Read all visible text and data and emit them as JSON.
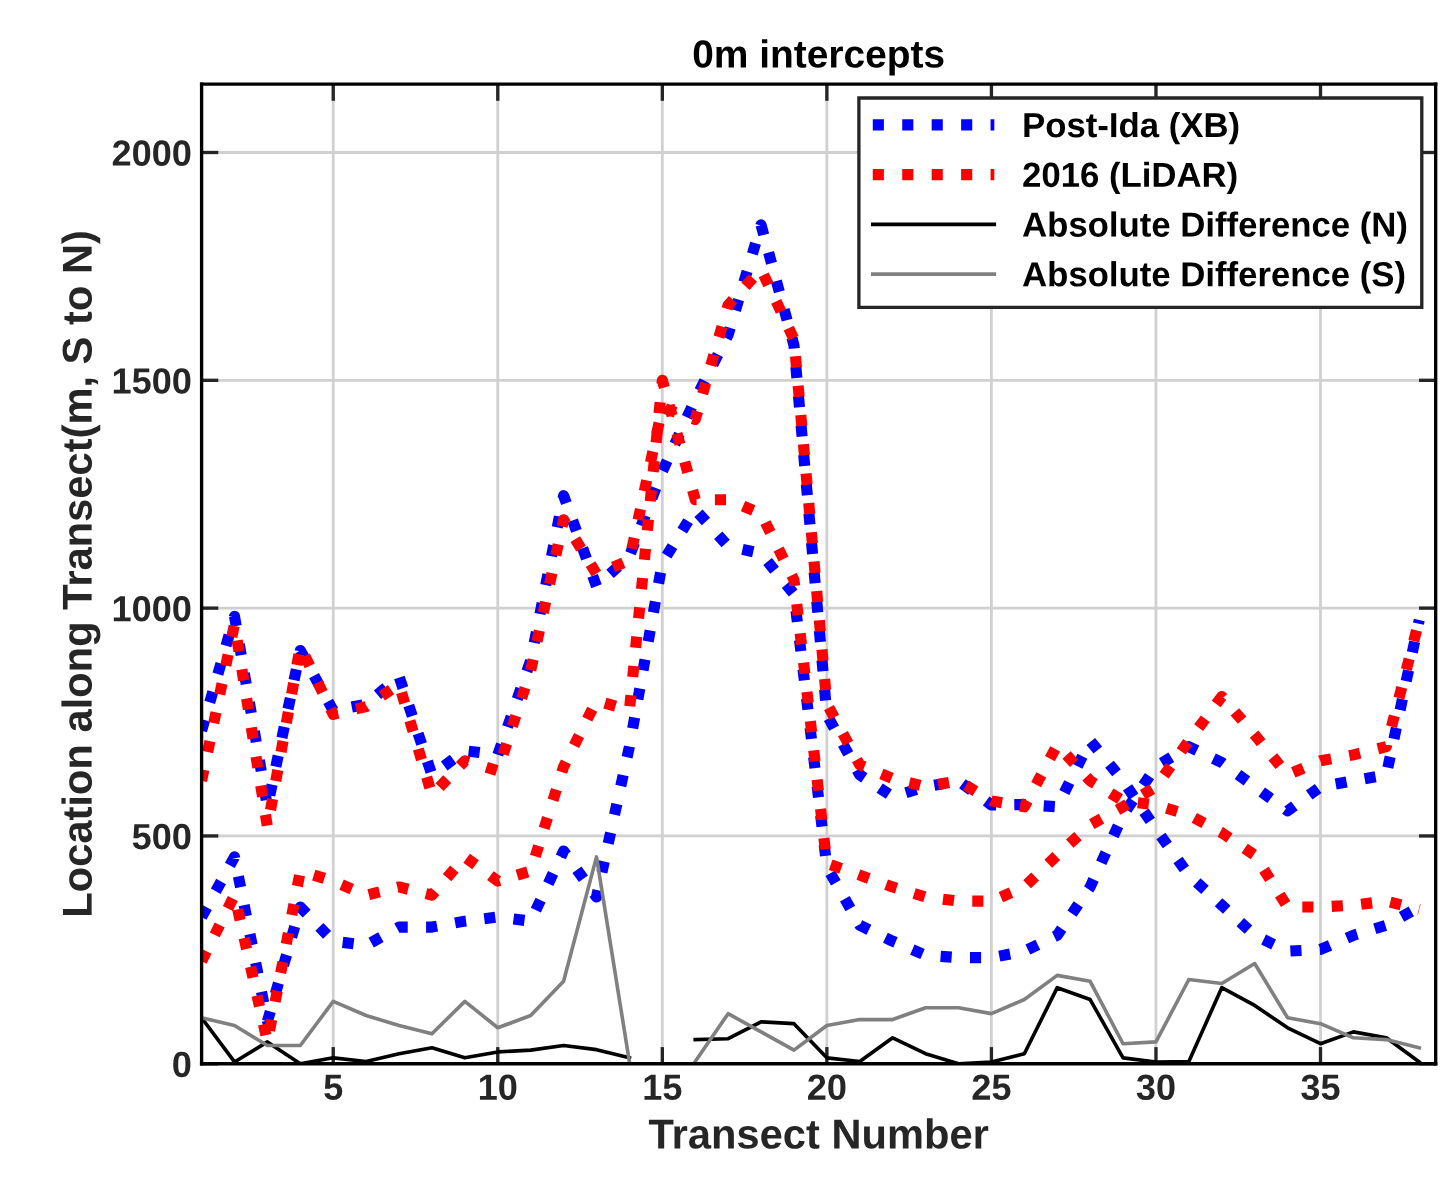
{
  "chart_data": {
    "type": "line",
    "title": "0m intercepts",
    "xlabel": "Transect Number",
    "ylabel": "Location along Transect(m, S to N)",
    "x": [
      1,
      2,
      3,
      4,
      5,
      6,
      7,
      8,
      9,
      10,
      11,
      12,
      13,
      14,
      15,
      16,
      17,
      18,
      19,
      20,
      21,
      22,
      23,
      24,
      25,
      26,
      27,
      28,
      29,
      30,
      31,
      32,
      33,
      34,
      35,
      36,
      37,
      38
    ],
    "series": [
      {
        "name": "Post-Ida (XB)",
        "color": "#0000ff",
        "line_style": "dotted",
        "values": [
          731,
          982,
          564,
          907,
          775,
          789,
          850,
          634,
          687,
          678,
          885,
          1247,
          1048,
          1114,
          1300,
          1458,
          1600,
          1841,
          1577,
          766,
          634,
          586,
          608,
          621,
          568,
          569,
          564,
          709,
          621,
          515,
          414,
          348,
          282,
          247,
          251,
          282,
          304,
          344
        ]
      },
      {
        "color": "#0000ff",
        "line_style": "dotted",
        "values": [
          322,
          454,
          93,
          344,
          269,
          260,
          300,
          300,
          313,
          322,
          313,
          467,
          366,
          696,
          1100,
          1216,
          1136,
          1120,
          1031,
          432,
          304,
          269,
          238,
          233,
          233,
          247,
          282,
          388,
          546,
          652,
          696,
          661,
          608,
          555,
          608,
          621,
          634,
          974
        ]
      },
      {
        "name": "2016 (LiDAR)",
        "color": "#ff0000",
        "line_style": "dotted",
        "values": [
          621,
          965,
          520,
          916,
          767,
          784,
          833,
          590,
          665,
          643,
          863,
          1194,
          1075,
          1105,
          1440,
          1414,
          1665,
          1744,
          1590,
          790,
          656,
          626,
          608,
          621,
          577,
          564,
          700,
          621,
          577,
          568,
          546,
          507,
          458,
          344,
          344,
          348,
          357,
          339
        ]
      },
      {
        "color": "#ff0000",
        "line_style": "dotted",
        "values": [
          225,
          370,
          48,
          423,
          401,
          370,
          388,
          370,
          454,
          401,
          423,
          652,
          797,
          776,
          1500,
          1238,
          1238,
          1207,
          1062,
          440,
          414,
          388,
          366,
          357,
          357,
          388,
          458,
          524,
          564,
          608,
          709,
          806,
          722,
          634,
          665,
          678,
          696,
          974
        ]
      },
      {
        "name": "Absolute Difference (N)",
        "color": "#000000",
        "line_style": "solid",
        "values": [
          101,
          4,
          48,
          0,
          13,
          5,
          22,
          35,
          13,
          26,
          30,
          40,
          31,
          13,
          null,
          53,
          55,
          92,
          88,
          13,
          5,
          57,
          22,
          0,
          4,
          22,
          167,
          141,
          13,
          4,
          5,
          167,
          128,
          79,
          44,
          70,
          57,
          4
        ]
      },
      {
        "name": "Absolute Difference (S)",
        "color": "#808080",
        "line_style": "solid",
        "values": [
          101,
          84,
          40,
          40,
          137,
          106,
          84,
          66,
          137,
          79,
          106,
          181,
          454,
          4,
          null,
          5,
          110,
          70,
          30,
          84,
          97,
          97,
          123,
          123,
          110,
          141,
          194,
          181,
          44,
          48,
          185,
          176,
          220,
          101,
          88,
          57,
          53,
          35
        ]
      }
    ],
    "xlim": [
      1,
      38.5
    ],
    "ylim": [
      0,
      2150
    ],
    "xticks": [
      5,
      10,
      15,
      20,
      25,
      30,
      35
    ],
    "yticks": [
      0,
      500,
      1000,
      1500,
      2000
    ],
    "grid": true,
    "legend": "top right"
  }
}
